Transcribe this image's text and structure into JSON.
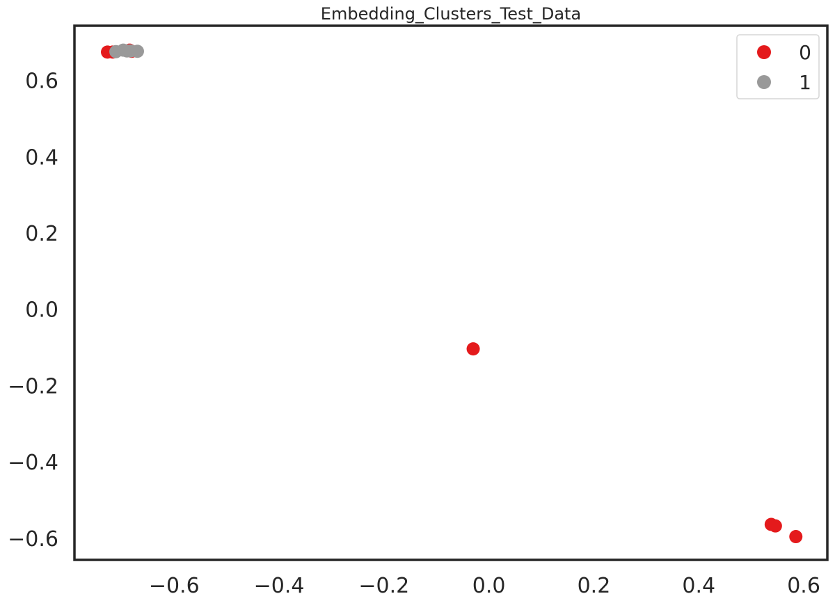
{
  "chart_data": {
    "type": "scatter",
    "title": "Embedding_Clusters_Test_Data",
    "xlabel": "",
    "ylabel": "",
    "xlim": [
      -0.79,
      0.645
    ],
    "ylim": [
      -0.655,
      0.745
    ],
    "grid": false,
    "legend_position": "top-right",
    "x_ticks": [
      {
        "value": -0.6,
        "label": "−0.6"
      },
      {
        "value": -0.4,
        "label": "−0.4"
      },
      {
        "value": -0.2,
        "label": "−0.2"
      },
      {
        "value": 0.0,
        "label": "0.0"
      },
      {
        "value": 0.2,
        "label": "0.2"
      },
      {
        "value": 0.4,
        "label": "0.4"
      },
      {
        "value": 0.6,
        "label": "0.6"
      }
    ],
    "y_ticks": [
      {
        "value": 0.6,
        "label": "0.6"
      },
      {
        "value": 0.4,
        "label": "0.4"
      },
      {
        "value": 0.2,
        "label": "0.2"
      },
      {
        "value": 0.0,
        "label": "0.0"
      },
      {
        "value": -0.2,
        "label": "−0.2"
      },
      {
        "value": -0.4,
        "label": "−0.4"
      },
      {
        "value": -0.6,
        "label": "−0.6"
      }
    ],
    "series": [
      {
        "name": "0",
        "color": "#e41a1c",
        "points": [
          {
            "x": -0.727,
            "y": 0.676
          },
          {
            "x": -0.717,
            "y": 0.676
          },
          {
            "x": -0.685,
            "y": 0.681
          },
          {
            "x": -0.681,
            "y": 0.678
          },
          {
            "x": -0.03,
            "y": -0.102
          },
          {
            "x": 0.538,
            "y": -0.562
          },
          {
            "x": 0.546,
            "y": -0.566
          },
          {
            "x": 0.585,
            "y": -0.594
          }
        ]
      },
      {
        "name": "1",
        "color": "#999999",
        "points": [
          {
            "x": -0.711,
            "y": 0.677
          },
          {
            "x": -0.697,
            "y": 0.681
          },
          {
            "x": -0.69,
            "y": 0.679
          },
          {
            "x": -0.683,
            "y": 0.679
          },
          {
            "x": -0.67,
            "y": 0.678
          }
        ]
      }
    ]
  }
}
